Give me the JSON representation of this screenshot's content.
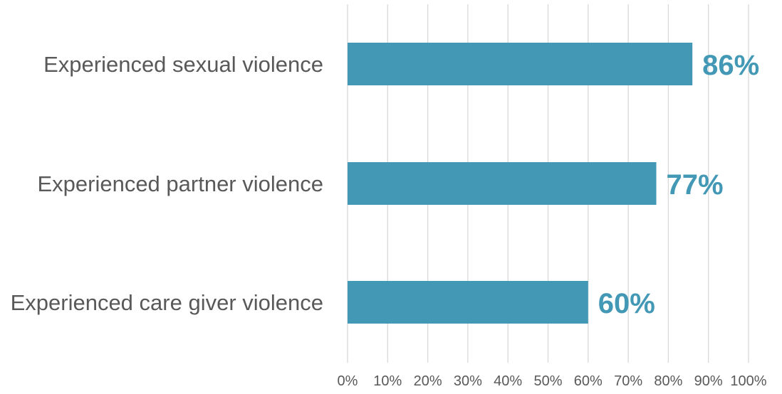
{
  "chart_data": {
    "type": "bar",
    "orientation": "horizontal",
    "categories": [
      "Experienced sexual violence",
      "Experienced partner violence",
      "Experienced care giver violence"
    ],
    "values": [
      86,
      77,
      60
    ],
    "data_labels": [
      "86%",
      "77%",
      "60%"
    ],
    "x_ticks": [
      "0%",
      "10%",
      "20%",
      "30%",
      "40%",
      "50%",
      "60%",
      "70%",
      "80%",
      "90%",
      "100%"
    ],
    "xlim": [
      0,
      100
    ],
    "grid": "vertical",
    "title": "",
    "xlabel": "",
    "ylabel": "",
    "colors": {
      "bar": "#4399b5",
      "data_label": "#4399b5",
      "category_label": "#595959",
      "tick_label": "#595959",
      "gridline": "#d9d9d9"
    }
  }
}
